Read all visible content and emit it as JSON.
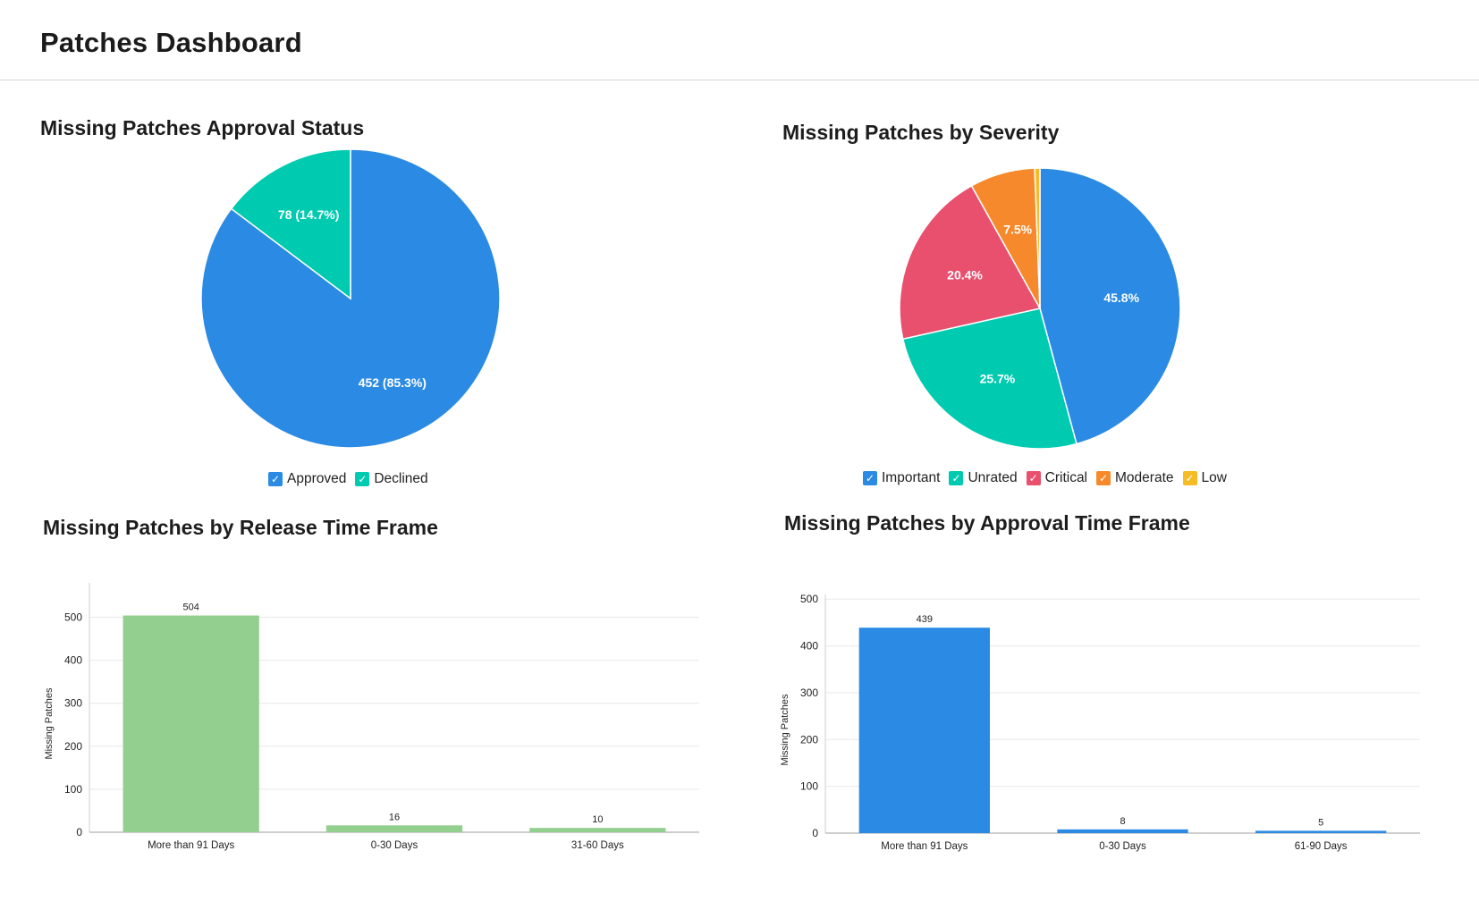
{
  "page": {
    "title": "Patches Dashboard"
  },
  "chart_data": [
    {
      "type": "pie",
      "title": "Missing Patches Approval Status",
      "slices": [
        {
          "name": "Approved",
          "value": 452,
          "label": "452 (85.3%)",
          "color": "#2b8ae3"
        },
        {
          "name": "Declined",
          "value": 78,
          "label": "78 (14.7%)",
          "color": "#00cbb0"
        }
      ],
      "legend": [
        "Approved",
        "Declined"
      ],
      "legend_placement": "bottom"
    },
    {
      "type": "pie",
      "title": "Missing Patches by Severity",
      "slices": [
        {
          "name": "Important",
          "value": 45.8,
          "label": "45.8%",
          "color": "#2b8ae3"
        },
        {
          "name": "Unrated",
          "value": 25.7,
          "label": "25.7%",
          "color": "#00cbb0"
        },
        {
          "name": "Critical",
          "value": 20.4,
          "label": "20.4%",
          "color": "#e8506e"
        },
        {
          "name": "Moderate",
          "value": 7.5,
          "label": "7.5%",
          "color": "#f5892b"
        },
        {
          "name": "Low",
          "value": 0.6,
          "label": "",
          "color": "#f7bc24"
        }
      ],
      "legend": [
        "Important",
        "Unrated",
        "Critical",
        "Moderate",
        "Low"
      ],
      "legend_placement": "bottom"
    },
    {
      "type": "bar",
      "title": "Missing Patches by Release Time Frame",
      "categories": [
        "More than 91 Days",
        "0-30 Days",
        "31-60 Days"
      ],
      "values": [
        504,
        16,
        10
      ],
      "ylabel": "Missing Patches",
      "xlabel": "",
      "ylim": [
        0,
        580
      ],
      "yticks": [
        0,
        100,
        200,
        300,
        400,
        500
      ],
      "color": "#93d08f",
      "grid": true
    },
    {
      "type": "bar",
      "title": "Missing Patches by Approval Time Frame",
      "categories": [
        "More than 91 Days",
        "0-30 Days",
        "61-90 Days"
      ],
      "values": [
        439,
        8,
        5
      ],
      "ylabel": "Missing Patches",
      "xlabel": "",
      "ylim": [
        0,
        510
      ],
      "yticks": [
        0,
        100,
        200,
        300,
        400,
        500
      ],
      "color": "#2b8ae3",
      "grid": true
    }
  ]
}
